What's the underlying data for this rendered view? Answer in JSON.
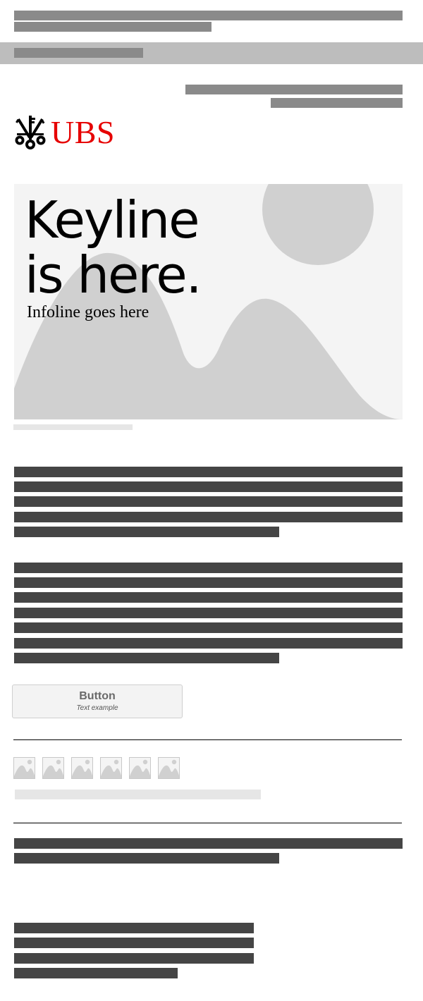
{
  "brand": {
    "name": "UBS",
    "color": "#e60000",
    "icon": "three-keys-icon"
  },
  "hero": {
    "keyline_line1": "Keyline",
    "keyline_line2": "is here.",
    "infoline": "Infoline goes here"
  },
  "cta": {
    "label": "Button",
    "sublabel": "Text example"
  },
  "thumbnails": [
    {
      "icon": "image-placeholder-icon"
    },
    {
      "icon": "image-placeholder-icon"
    },
    {
      "icon": "image-placeholder-icon"
    },
    {
      "icon": "image-placeholder-icon"
    },
    {
      "icon": "image-placeholder-icon"
    },
    {
      "icon": "image-placeholder-icon"
    }
  ]
}
